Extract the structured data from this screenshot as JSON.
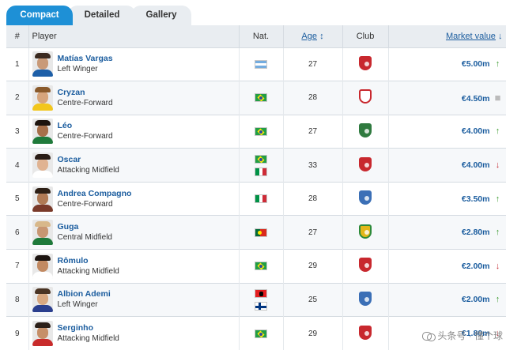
{
  "tabs": [
    {
      "label": "Compact",
      "active": true
    },
    {
      "label": "Detailed",
      "active": false
    },
    {
      "label": "Gallery",
      "active": false
    }
  ],
  "columns": {
    "num": "#",
    "player": "Player",
    "nat": "Nat.",
    "age": "Age",
    "age_sort_icon": "↕",
    "club": "Club",
    "value": "Market value",
    "value_sort_icon": "↓"
  },
  "colors": {
    "accent": "#1e90d6",
    "link": "#1a5c9e",
    "up": "#3a9a2d",
    "down": "#c4262e",
    "header_bg": "#e9edf1"
  },
  "rows": [
    {
      "num": "1",
      "name": "Matías Vargas",
      "position": "Left Winger",
      "nationalities": [
        "argentina-flag"
      ],
      "age": "27",
      "club_icon": "shanghai-port-crest",
      "value": "€5.00m",
      "trend": "up",
      "trend_icon": "↑"
    },
    {
      "num": "2",
      "name": "Cryzan",
      "position": "Centre-Forward",
      "nationalities": [
        "brazil-flag"
      ],
      "age": "28",
      "club_icon": "club-crest",
      "value": "€4.50m",
      "trend": "same",
      "trend_icon": "■"
    },
    {
      "num": "3",
      "name": "Léo",
      "position": "Centre-Forward",
      "nationalities": [
        "brazil-flag"
      ],
      "age": "27",
      "club_icon": "club-crest",
      "value": "€4.00m",
      "trend": "up",
      "trend_icon": "↑"
    },
    {
      "num": "4",
      "name": "Oscar",
      "position": "Attacking Midfield",
      "nationalities": [
        "brazil-flag",
        "italy-flag"
      ],
      "age": "33",
      "club_icon": "shanghai-port-crest",
      "value": "€4.00m",
      "trend": "down",
      "trend_icon": "↓"
    },
    {
      "num": "5",
      "name": "Andrea Compagno",
      "position": "Centre-Forward",
      "nationalities": [
        "italy-flag"
      ],
      "age": "28",
      "club_icon": "club-crest",
      "value": "€3.50m",
      "trend": "up",
      "trend_icon": "↑"
    },
    {
      "num": "6",
      "name": "Guga",
      "position": "Central Midfield",
      "nationalities": [
        "portugal-flag"
      ],
      "age": "27",
      "club_icon": "club-crest",
      "value": "€2.80m",
      "trend": "up",
      "trend_icon": "↑"
    },
    {
      "num": "7",
      "name": "Rômulo",
      "position": "Attacking Midfield",
      "nationalities": [
        "brazil-flag"
      ],
      "age": "29",
      "club_icon": "club-crest",
      "value": "€2.00m",
      "trend": "down",
      "trend_icon": "↓"
    },
    {
      "num": "8",
      "name": "Albion Ademi",
      "position": "Left Winger",
      "nationalities": [
        "albania-flag",
        "finland-flag"
      ],
      "age": "25",
      "club_icon": "club-crest",
      "value": "€2.00m",
      "trend": "up",
      "trend_icon": "↑"
    },
    {
      "num": "9",
      "name": "Serginho",
      "position": "Attacking Midfield",
      "nationalities": [
        "brazil-flag"
      ],
      "age": "29",
      "club_icon": "club-crest",
      "value": "€1.80m",
      "trend": "down",
      "trend_icon": "↓"
    }
  ],
  "watermark": "头条号 · 懂个球"
}
